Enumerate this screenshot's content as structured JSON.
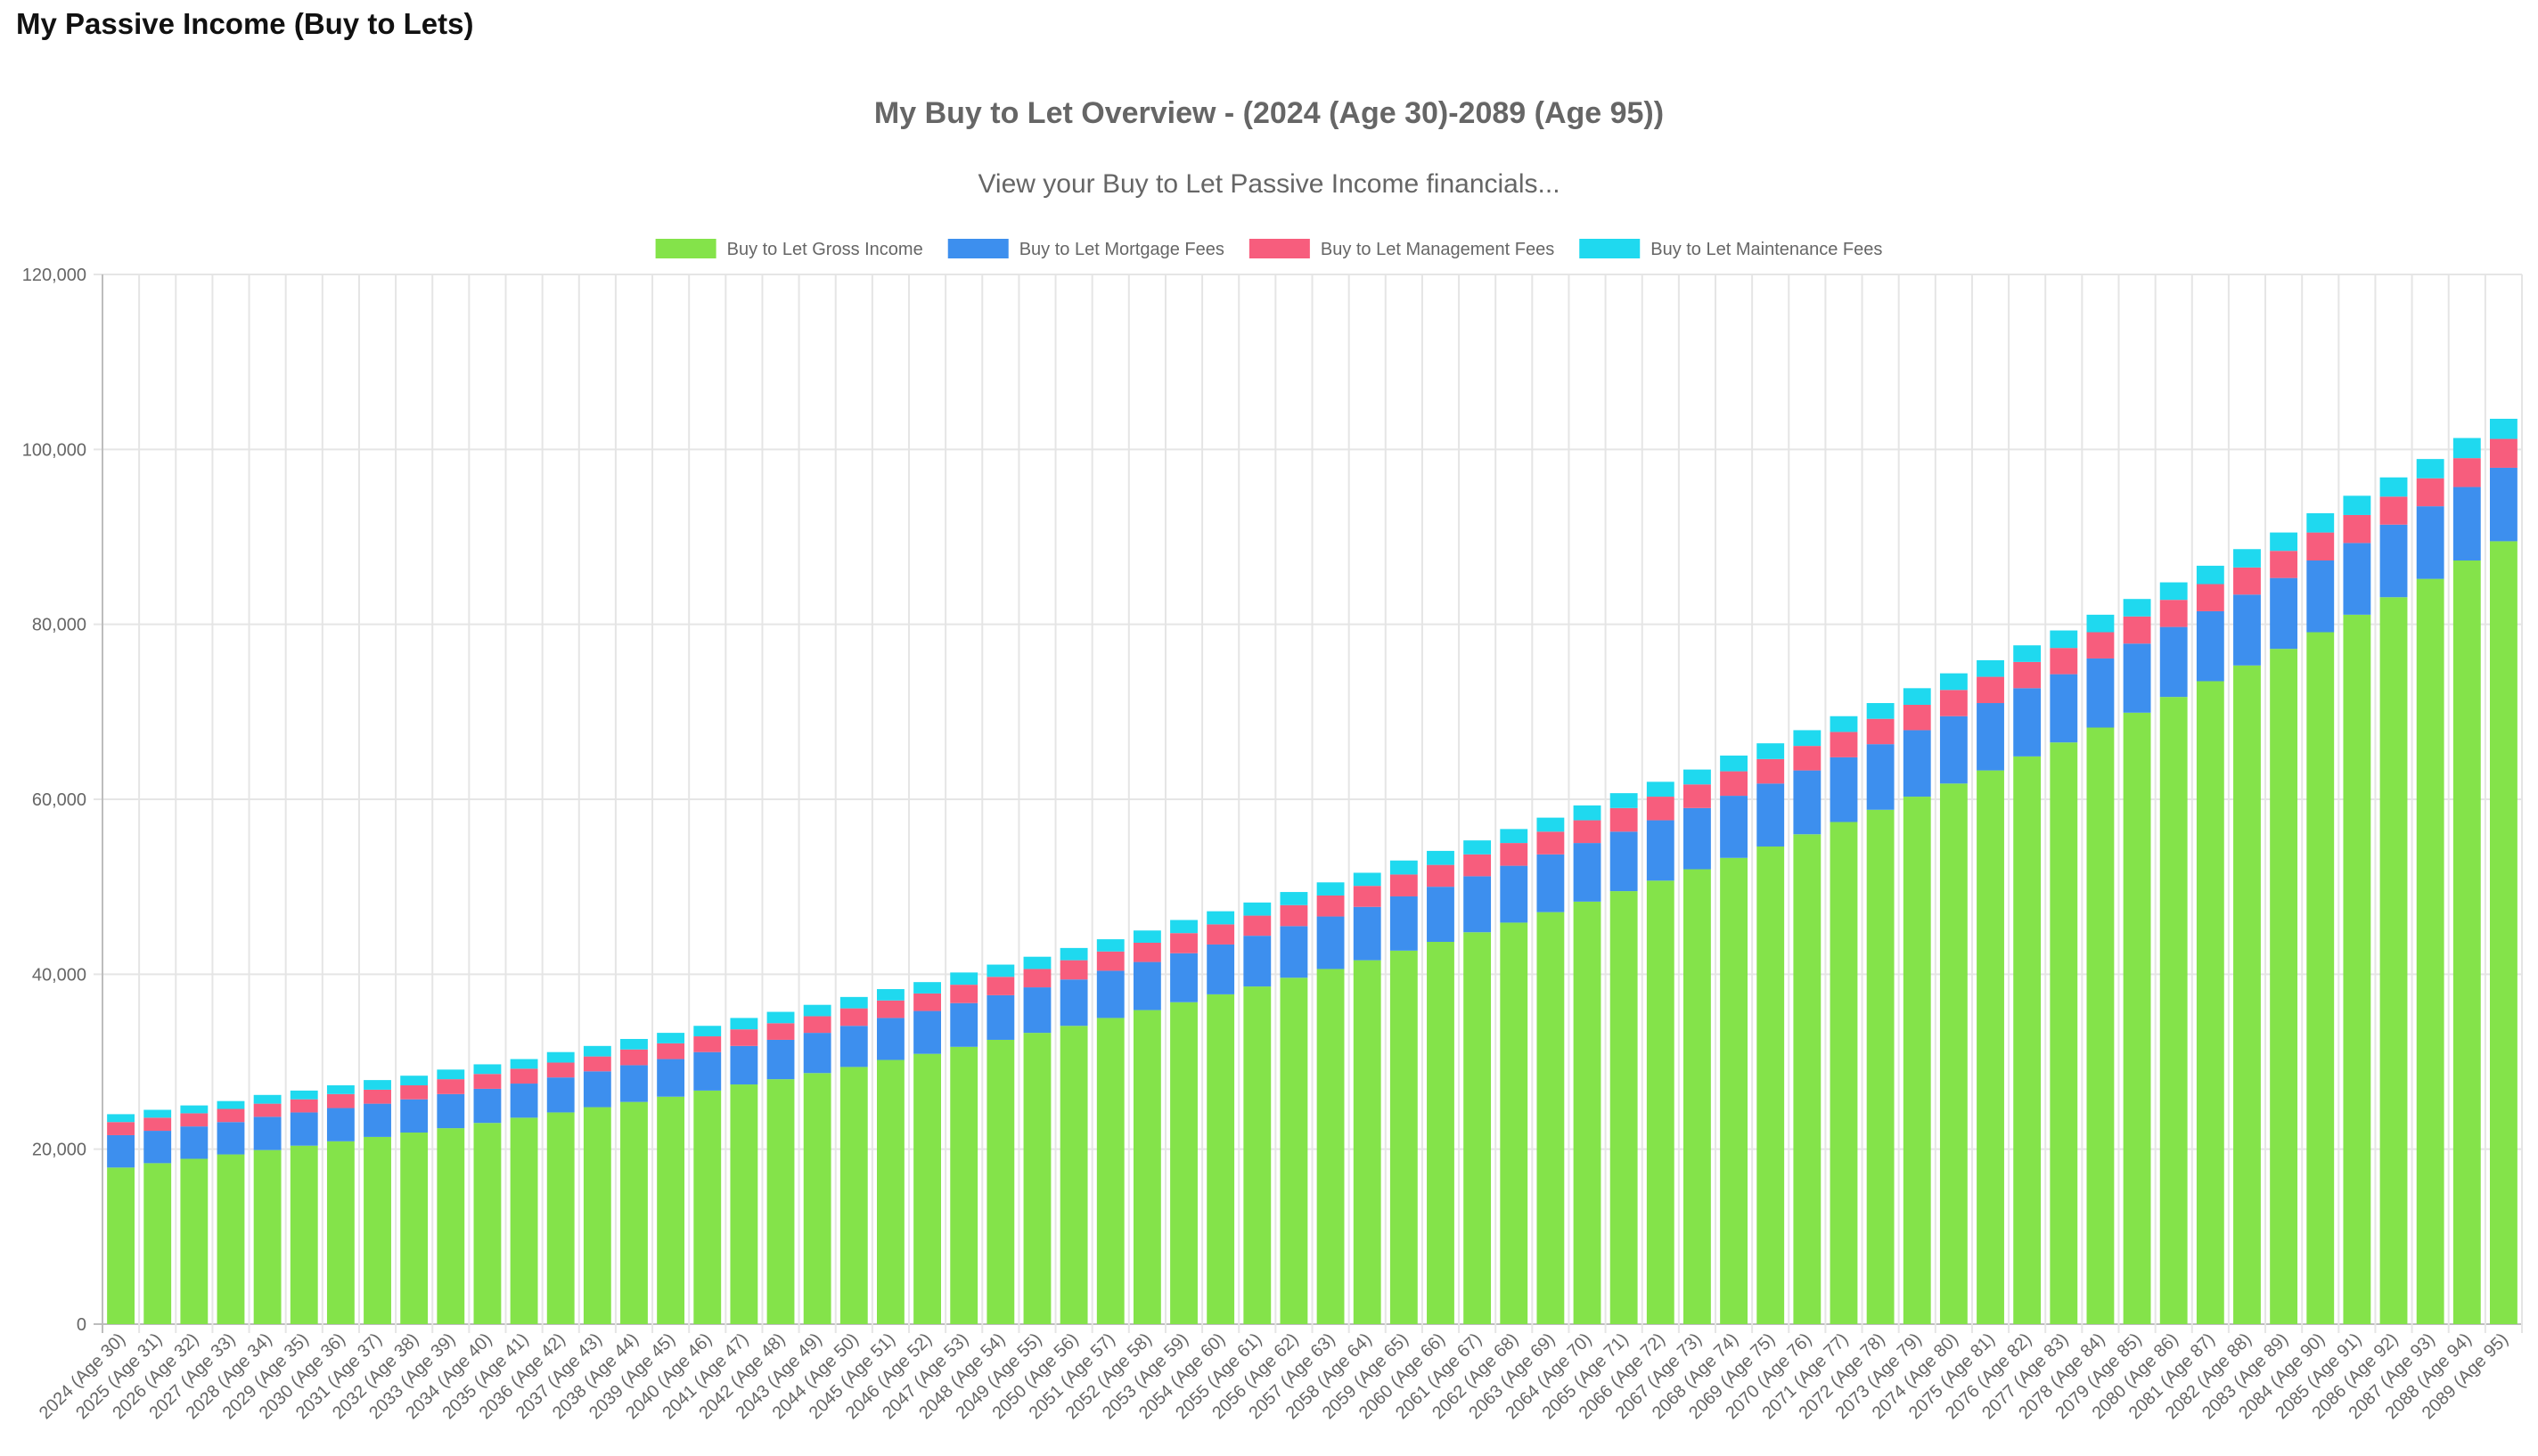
{
  "page": {
    "heading": "My Passive Income (Buy to Lets)"
  },
  "chart_data": {
    "type": "bar",
    "stacked": true,
    "title": "My Buy to Let Overview - (2024 (Age 30)-2089 (Age 95))",
    "subtitle": "View your Buy to Let Passive Income financials...",
    "xlabel": "",
    "ylabel": "",
    "ylim": [
      0,
      120000
    ],
    "yticks": [
      0,
      20000,
      40000,
      60000,
      80000,
      100000,
      120000
    ],
    "ytick_labels": [
      "0",
      "20,000",
      "40,000",
      "60,000",
      "80,000",
      "100,000",
      "120,000"
    ],
    "grid": true,
    "legend_position": "top",
    "start_year": 2024,
    "start_age": 30,
    "categories": [
      "2024 (Age 30)",
      "2025 (Age 31)",
      "2026 (Age 32)",
      "2027 (Age 33)",
      "2028 (Age 34)",
      "2029 (Age 35)",
      "2030 (Age 36)",
      "2031 (Age 37)",
      "2032 (Age 38)",
      "2033 (Age 39)",
      "2034 (Age 40)",
      "2035 (Age 41)",
      "2036 (Age 42)",
      "2037 (Age 43)",
      "2038 (Age 44)",
      "2039 (Age 45)",
      "2040 (Age 46)",
      "2041 (Age 47)",
      "2042 (Age 48)",
      "2043 (Age 49)",
      "2044 (Age 50)",
      "2045 (Age 51)",
      "2046 (Age 52)",
      "2047 (Age 53)",
      "2048 (Age 54)",
      "2049 (Age 55)",
      "2050 (Age 56)",
      "2051 (Age 57)",
      "2052 (Age 58)",
      "2053 (Age 59)",
      "2054 (Age 60)",
      "2055 (Age 61)",
      "2056 (Age 62)",
      "2057 (Age 63)",
      "2058 (Age 64)",
      "2059 (Age 65)",
      "2060 (Age 66)",
      "2061 (Age 67)",
      "2062 (Age 68)",
      "2063 (Age 69)",
      "2064 (Age 70)",
      "2065 (Age 71)",
      "2066 (Age 72)",
      "2067 (Age 73)",
      "2068 (Age 74)",
      "2069 (Age 75)",
      "2070 (Age 76)",
      "2071 (Age 77)",
      "2072 (Age 78)",
      "2073 (Age 79)",
      "2074 (Age 80)",
      "2075 (Age 81)",
      "2076 (Age 82)",
      "2077 (Age 83)",
      "2078 (Age 84)",
      "2079 (Age 85)",
      "2080 (Age 86)",
      "2081 (Age 87)",
      "2082 (Age 88)",
      "2083 (Age 89)",
      "2084 (Age 90)",
      "2085 (Age 91)",
      "2086 (Age 92)",
      "2087 (Age 93)",
      "2088 (Age 94)",
      "2089 (Age 95)"
    ],
    "series": [
      {
        "name": "Buy to Let Gross Income",
        "color": "#84e34a",
        "values": [
          17900,
          18400,
          18900,
          19400,
          19900,
          20400,
          20900,
          21400,
          21900,
          22400,
          23000,
          23600,
          24200,
          24800,
          25400,
          26000,
          26700,
          27400,
          28000,
          28700,
          29400,
          30200,
          30900,
          31700,
          32500,
          33300,
          34100,
          35000,
          35900,
          36800,
          37700,
          38600,
          39600,
          40600,
          41600,
          42700,
          43700,
          44800,
          45900,
          47100,
          48300,
          49500,
          50700,
          52000,
          53300,
          54600,
          56000,
          57400,
          58800,
          60300,
          61800,
          63300,
          64900,
          66500,
          68200,
          69900,
          71700,
          73500,
          75300,
          77200,
          79100,
          81100,
          83100,
          85200,
          87300,
          89500
        ]
      },
      {
        "name": "Buy to Let Mortgage Fees",
        "color": "#3d8fee",
        "values": [
          3700,
          3700,
          3700,
          3700,
          3800,
          3800,
          3800,
          3800,
          3800,
          3900,
          3900,
          3900,
          4000,
          4100,
          4200,
          4300,
          4400,
          4400,
          4500,
          4600,
          4700,
          4800,
          4900,
          5000,
          5100,
          5200,
          5300,
          5400,
          5500,
          5600,
          5700,
          5800,
          5900,
          6000,
          6100,
          6200,
          6300,
          6400,
          6500,
          6600,
          6700,
          6800,
          6900,
          7000,
          7100,
          7200,
          7300,
          7400,
          7500,
          7600,
          7700,
          7700,
          7800,
          7800,
          7900,
          7900,
          8000,
          8000,
          8100,
          8100,
          8200,
          8200,
          8300,
          8300,
          8400,
          8400
        ]
      },
      {
        "name": "Buy to Let Management Fees",
        "color": "#f75d7d",
        "values": [
          1500,
          1500,
          1500,
          1500,
          1500,
          1500,
          1600,
          1600,
          1600,
          1700,
          1700,
          1700,
          1700,
          1700,
          1800,
          1800,
          1800,
          1900,
          1900,
          1900,
          2000,
          2000,
          2000,
          2100,
          2100,
          2100,
          2200,
          2200,
          2200,
          2300,
          2300,
          2300,
          2400,
          2400,
          2400,
          2500,
          2500,
          2500,
          2600,
          2600,
          2600,
          2700,
          2700,
          2700,
          2800,
          2800,
          2800,
          2900,
          2900,
          2900,
          3000,
          3000,
          3000,
          3000,
          3000,
          3100,
          3100,
          3100,
          3100,
          3100,
          3200,
          3200,
          3200,
          3200,
          3300,
          3300
        ]
      },
      {
        "name": "Buy to Let Maintenance Fees",
        "color": "#1fd9ef",
        "values": [
          900,
          900,
          900,
          900,
          1000,
          1000,
          1000,
          1100,
          1100,
          1100,
          1100,
          1100,
          1200,
          1200,
          1200,
          1200,
          1200,
          1300,
          1300,
          1300,
          1300,
          1300,
          1300,
          1400,
          1400,
          1400,
          1400,
          1400,
          1400,
          1500,
          1500,
          1500,
          1500,
          1500,
          1500,
          1600,
          1600,
          1600,
          1600,
          1600,
          1700,
          1700,
          1700,
          1700,
          1800,
          1800,
          1800,
          1800,
          1800,
          1900,
          1900,
          1900,
          1900,
          2000,
          2000,
          2000,
          2000,
          2100,
          2100,
          2100,
          2200,
          2200,
          2200,
          2200,
          2300,
          2300
        ]
      }
    ]
  }
}
